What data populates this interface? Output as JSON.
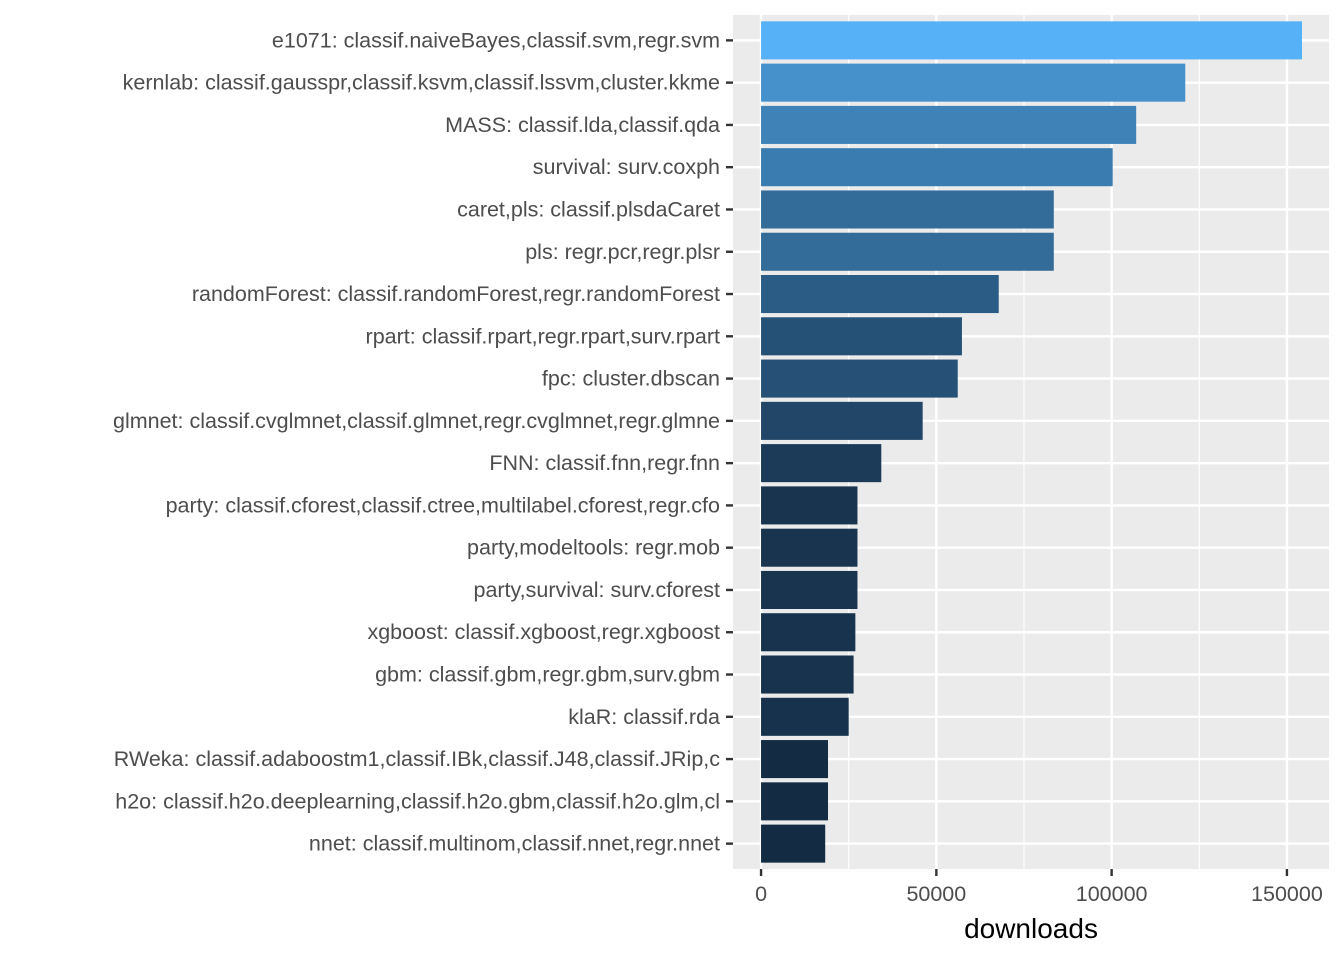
{
  "chart_data": {
    "type": "bar",
    "orientation": "horizontal",
    "categories": [
      "e1071: classif.naiveBayes,classif.svm,regr.svm",
      "kernlab: classif.gausspr,classif.ksvm,classif.lssvm,cluster.kkme",
      "MASS: classif.lda,classif.qda",
      "survival: surv.coxph",
      "caret,pls: classif.plsdaCaret",
      "pls: regr.pcr,regr.plsr",
      "randomForest: classif.randomForest,regr.randomForest",
      "rpart: classif.rpart,regr.rpart,surv.rpart",
      "fpc: cluster.dbscan",
      "glmnet: classif.cvglmnet,classif.glmnet,regr.cvglmnet,regr.glmne",
      "FNN: classif.fnn,regr.fnn",
      "party: classif.cforest,classif.ctree,multilabel.cforest,regr.cfo",
      "party,modeltools: regr.mob",
      "party,survival: surv.cforest",
      "xgboost: classif.xgboost,regr.xgboost",
      "gbm: classif.gbm,regr.gbm,surv.gbm",
      "klaR: classif.rda",
      "RWeka: classif.adaboostm1,classif.IBk,classif.J48,classif.JRip,c",
      "h2o: classif.h2o.deeplearning,classif.h2o.gbm,classif.h2o.glm,cl",
      "nnet: classif.multinom,classif.nnet,regr.nnet"
    ],
    "values": [
      154300,
      121000,
      107000,
      100300,
      83500,
      83500,
      67800,
      57300,
      56100,
      46100,
      34300,
      27500,
      27500,
      27500,
      26900,
      26400,
      25000,
      19100,
      19100,
      18300
    ],
    "xlabel": "downloads",
    "ylabel": "",
    "xlim": [
      -8000,
      162000
    ],
    "xticks": [
      0,
      50000,
      100000,
      150000
    ],
    "xtick_labels": [
      "0",
      "50000",
      "100000",
      "150000"
    ],
    "grid": true,
    "fill_low": "#132B43",
    "fill_high": "#56B1F7",
    "panel_bg": "#EBEBEB"
  }
}
